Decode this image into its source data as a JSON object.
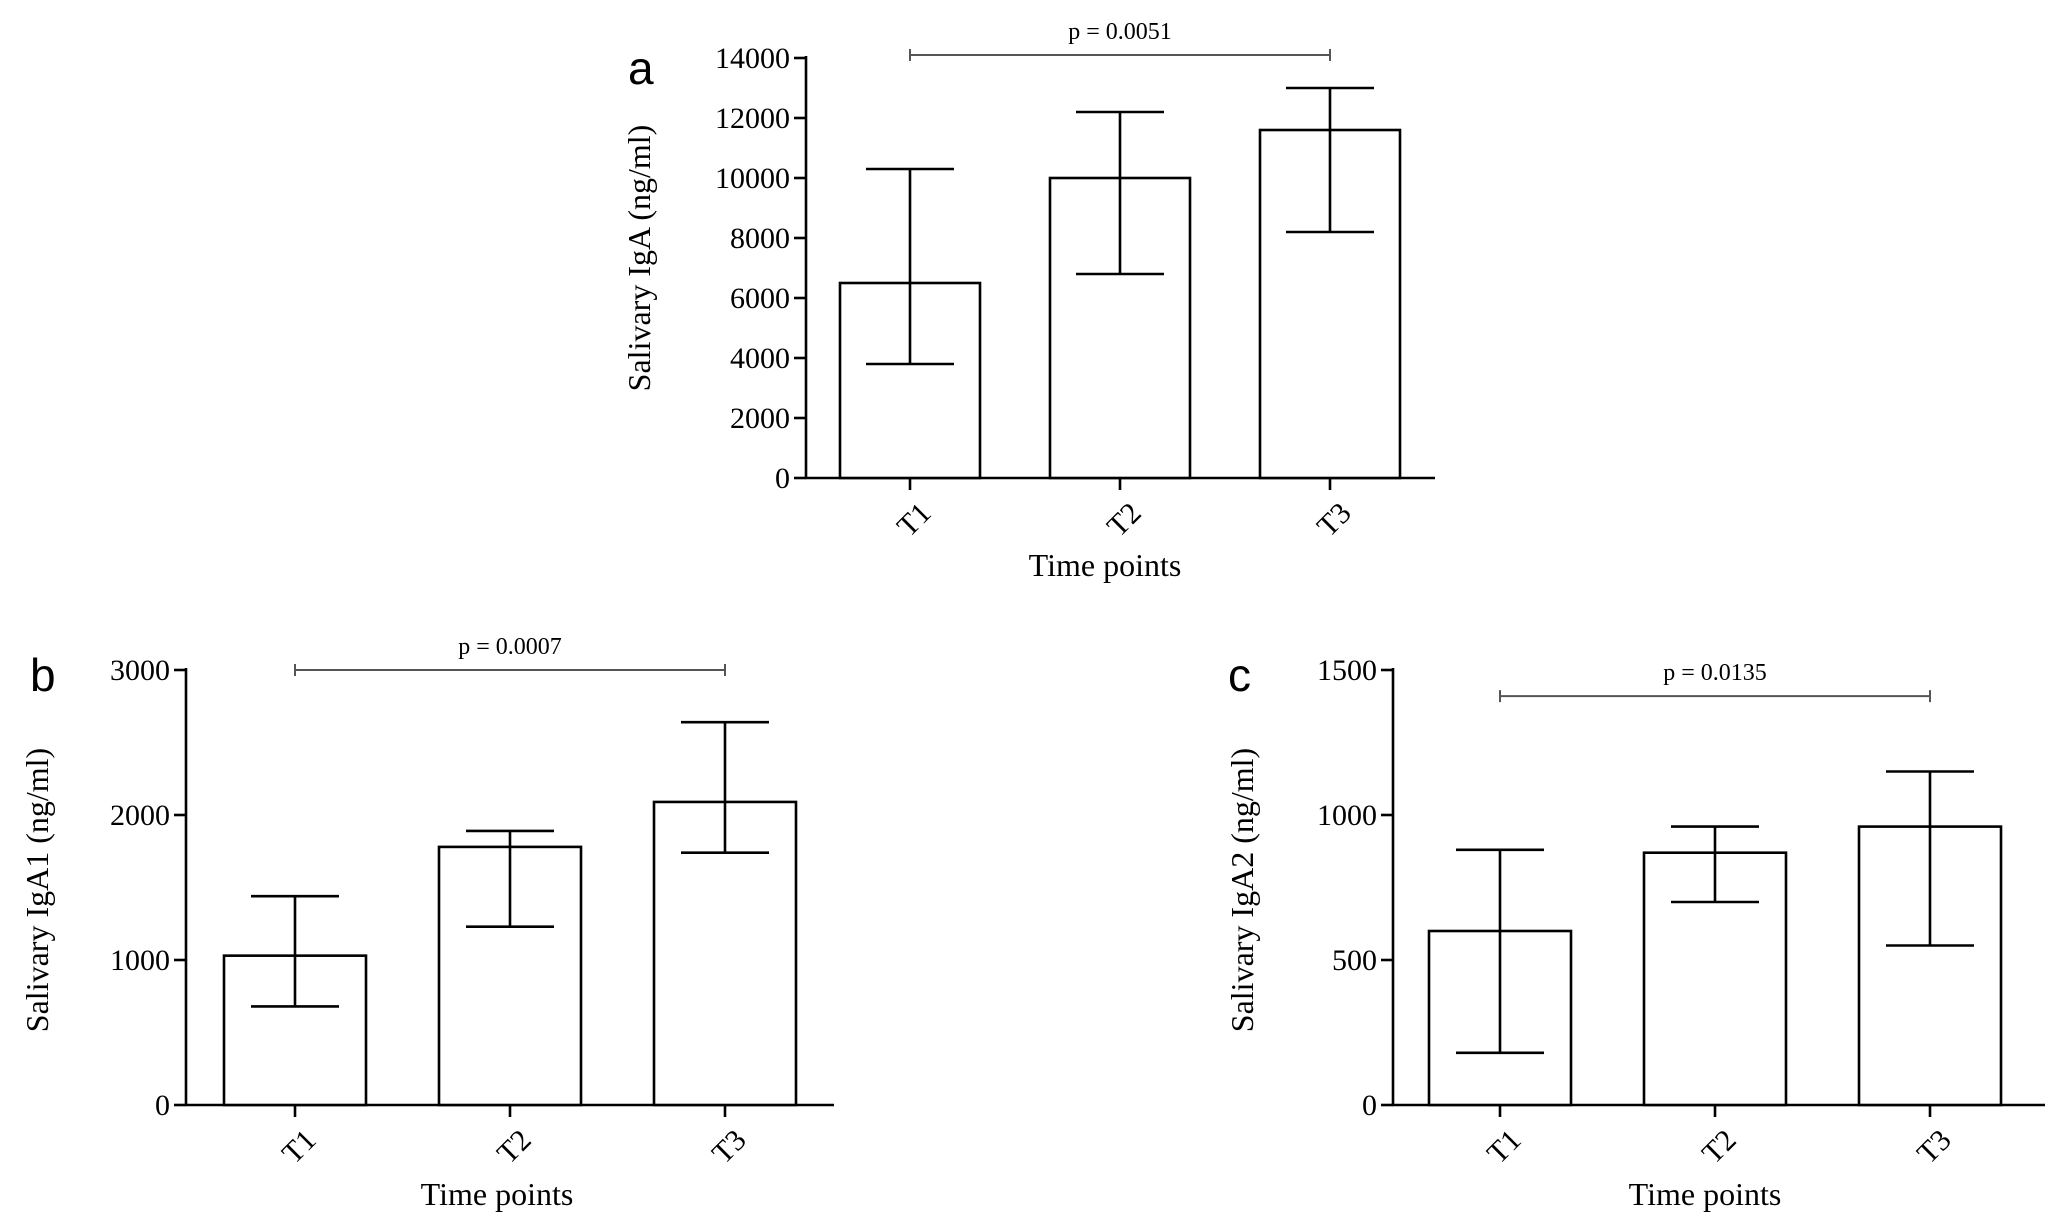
{
  "chart_data": [
    {
      "panel": "a",
      "type": "bar",
      "title": "",
      "xlabel": "Time points",
      "ylabel": "Salivary IgA (ng/ml)",
      "categories": [
        "T1",
        "T2",
        "T3"
      ],
      "values": [
        6500,
        10000,
        11600
      ],
      "error_low": [
        3800,
        6800,
        8200
      ],
      "error_high": [
        10300,
        12200,
        13000
      ],
      "ylim": [
        0,
        14000
      ],
      "yticks": [
        0,
        2000,
        4000,
        6000,
        8000,
        10000,
        12000,
        14000
      ],
      "ytick_labels": [
        "0",
        "2000",
        "4000",
        "6000",
        "8000",
        "10000",
        "12000",
        "14000"
      ],
      "significance": {
        "from": "T1",
        "to": "T3",
        "y": 14100,
        "label": "p = 0.0051"
      },
      "grid": false,
      "bar_color": "#ffffff",
      "edge_color": "#000000"
    },
    {
      "panel": "b",
      "type": "bar",
      "title": "",
      "xlabel": "Time points",
      "ylabel": "Salivary IgA1 (ng/ml)",
      "categories": [
        "T1",
        "T2",
        "T3"
      ],
      "values": [
        1030,
        1780,
        2090
      ],
      "error_low": [
        680,
        1230,
        1740
      ],
      "error_high": [
        1440,
        1890,
        2640
      ],
      "ylim": [
        0,
        3000
      ],
      "yticks": [
        0,
        1000,
        2000,
        3000
      ],
      "ytick_labels": [
        "0",
        "1000",
        "2000",
        "3000"
      ],
      "significance": {
        "from": "T1",
        "to": "T3",
        "y": 3000,
        "label": "p = 0.0007"
      },
      "grid": false,
      "bar_color": "#ffffff",
      "edge_color": "#000000"
    },
    {
      "panel": "c",
      "type": "bar",
      "title": "",
      "xlabel": "Time points",
      "ylabel": "Salivary IgA2 (ng/ml)",
      "categories": [
        "T1",
        "T2",
        "T3"
      ],
      "values": [
        600,
        870,
        960
      ],
      "error_low": [
        180,
        700,
        550
      ],
      "error_high": [
        880,
        960,
        1150
      ],
      "ylim": [
        0,
        1500
      ],
      "yticks": [
        0,
        500,
        1000,
        1500
      ],
      "ytick_labels": [
        "0",
        "500",
        "1000",
        "1500"
      ],
      "significance": {
        "from": "T1",
        "to": "T3",
        "y": 1410,
        "label": "p = 0.0135"
      },
      "grid": false,
      "bar_color": "#ffffff",
      "edge_color": "#000000"
    }
  ]
}
